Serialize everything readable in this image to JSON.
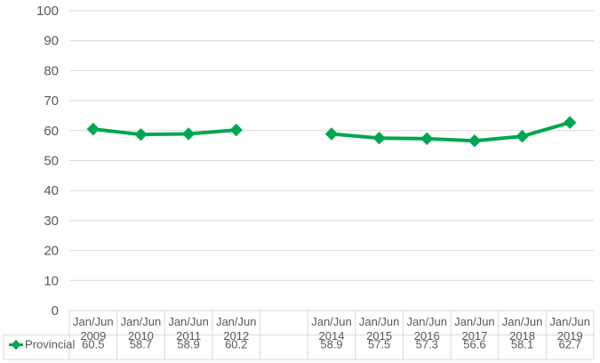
{
  "chart_data": {
    "type": "line",
    "title": "",
    "xlabel": "",
    "ylabel": "",
    "ylim": [
      0,
      100
    ],
    "yticks": [
      0,
      10,
      20,
      30,
      40,
      50,
      60,
      70,
      80,
      90,
      100
    ],
    "grid": true,
    "legend_position": "data-table-left",
    "categories": [
      [
        "Jan/Jun",
        "2009"
      ],
      [
        "Jan/Jun",
        "2010"
      ],
      [
        "Jan/Jun",
        "2011"
      ],
      [
        "Jan/Jun",
        "2012"
      ],
      [
        "",
        ""
      ],
      [
        "Jan/Jun",
        "2014"
      ],
      [
        "Jan/Jun",
        "2015"
      ],
      [
        "Jan/Jun",
        "2016"
      ],
      [
        "Jan/Jun",
        "2017"
      ],
      [
        "Jan/Jun",
        "2018"
      ],
      [
        "Jan/Jun",
        "2019"
      ]
    ],
    "series": [
      {
        "name": "Provincial",
        "color": "#00A651",
        "marker": "diamond",
        "values": [
          60.5,
          58.7,
          58.9,
          60.2,
          null,
          58.9,
          57.5,
          57.3,
          56.6,
          58.1,
          62.7
        ],
        "labels": [
          "60.5",
          "58.7",
          "58.9",
          "60.2",
          "",
          "58.9",
          "57.5",
          "57.3",
          "56.6",
          "58.1",
          "62.7"
        ]
      }
    ]
  }
}
